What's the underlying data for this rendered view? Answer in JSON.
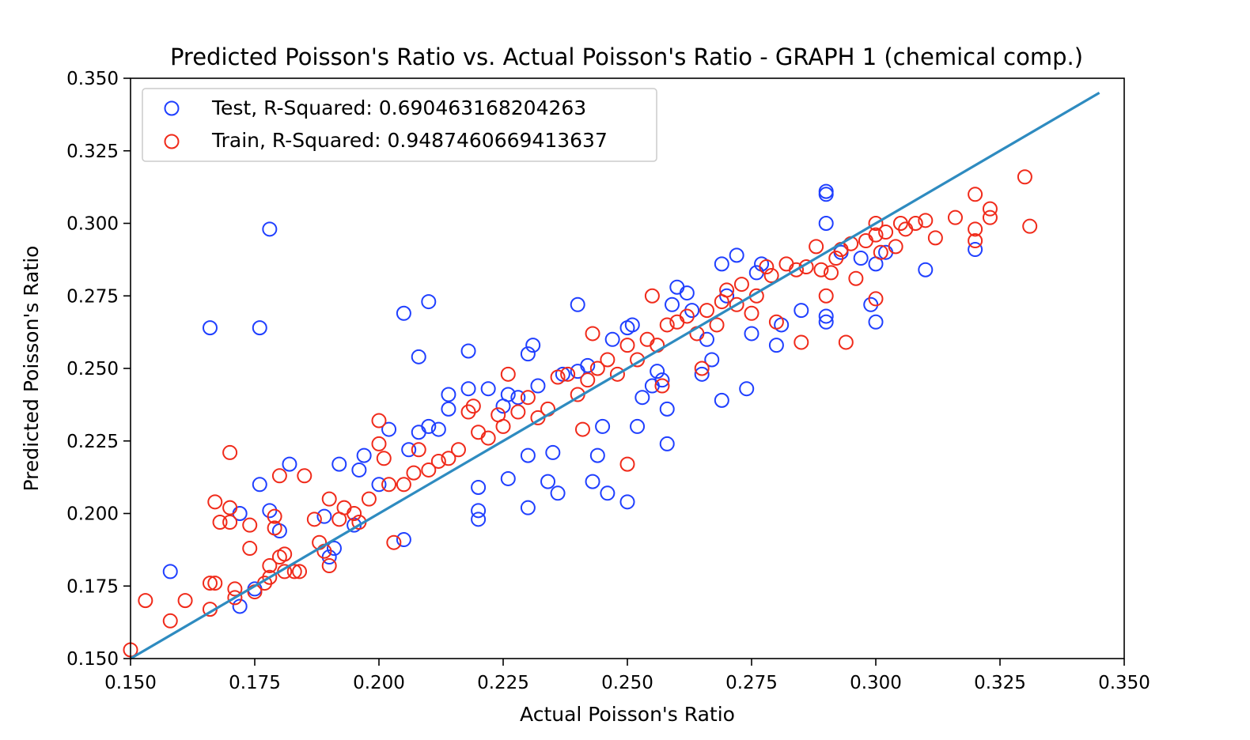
{
  "chart_data": {
    "type": "scatter",
    "title": "Predicted Poisson's Ratio vs. Actual Poisson's Ratio - GRAPH 1 (chemical comp.)",
    "xlabel": "Actual Poisson's Ratio",
    "ylabel": "Predicted Poisson's Ratio",
    "xlim": [
      0.15,
      0.35
    ],
    "ylim": [
      0.15,
      0.35
    ],
    "xticks": [
      "0.150",
      "0.175",
      "0.200",
      "0.225",
      "0.250",
      "0.275",
      "0.300",
      "0.325",
      "0.350"
    ],
    "yticks": [
      "0.150",
      "0.175",
      "0.200",
      "0.225",
      "0.250",
      "0.275",
      "0.300",
      "0.325",
      "0.350"
    ],
    "legend_position": "upper-left",
    "grid": false,
    "reference_line": {
      "x": [
        0.15,
        0.345
      ],
      "y": [
        0.15,
        0.345
      ],
      "color": "#2e8bc0"
    },
    "series": [
      {
        "name": "Test, R-Squared: 0.690463168204263",
        "color": "#1f3fff",
        "marker": "open-circle",
        "points": [
          [
            0.158,
            0.18
          ],
          [
            0.166,
            0.264
          ],
          [
            0.172,
            0.2
          ],
          [
            0.172,
            0.168
          ],
          [
            0.175,
            0.174
          ],
          [
            0.176,
            0.21
          ],
          [
            0.176,
            0.264
          ],
          [
            0.178,
            0.298
          ],
          [
            0.178,
            0.201
          ],
          [
            0.18,
            0.194
          ],
          [
            0.182,
            0.217
          ],
          [
            0.189,
            0.199
          ],
          [
            0.19,
            0.185
          ],
          [
            0.191,
            0.188
          ],
          [
            0.192,
            0.217
          ],
          [
            0.195,
            0.196
          ],
          [
            0.196,
            0.215
          ],
          [
            0.197,
            0.22
          ],
          [
            0.2,
            0.21
          ],
          [
            0.202,
            0.229
          ],
          [
            0.205,
            0.191
          ],
          [
            0.205,
            0.269
          ],
          [
            0.206,
            0.222
          ],
          [
            0.208,
            0.228
          ],
          [
            0.208,
            0.254
          ],
          [
            0.21,
            0.273
          ],
          [
            0.21,
            0.23
          ],
          [
            0.212,
            0.229
          ],
          [
            0.214,
            0.236
          ],
          [
            0.214,
            0.241
          ],
          [
            0.218,
            0.256
          ],
          [
            0.218,
            0.243
          ],
          [
            0.22,
            0.201
          ],
          [
            0.22,
            0.198
          ],
          [
            0.22,
            0.209
          ],
          [
            0.222,
            0.243
          ],
          [
            0.225,
            0.237
          ],
          [
            0.226,
            0.212
          ],
          [
            0.226,
            0.241
          ],
          [
            0.228,
            0.24
          ],
          [
            0.23,
            0.202
          ],
          [
            0.23,
            0.22
          ],
          [
            0.23,
            0.255
          ],
          [
            0.231,
            0.258
          ],
          [
            0.232,
            0.244
          ],
          [
            0.234,
            0.211
          ],
          [
            0.235,
            0.221
          ],
          [
            0.236,
            0.207
          ],
          [
            0.237,
            0.248
          ],
          [
            0.24,
            0.272
          ],
          [
            0.24,
            0.249
          ],
          [
            0.242,
            0.251
          ],
          [
            0.243,
            0.211
          ],
          [
            0.244,
            0.22
          ],
          [
            0.245,
            0.23
          ],
          [
            0.246,
            0.207
          ],
          [
            0.247,
            0.26
          ],
          [
            0.25,
            0.204
          ],
          [
            0.25,
            0.264
          ],
          [
            0.251,
            0.265
          ],
          [
            0.252,
            0.23
          ],
          [
            0.253,
            0.24
          ],
          [
            0.255,
            0.244
          ],
          [
            0.256,
            0.249
          ],
          [
            0.257,
            0.246
          ],
          [
            0.258,
            0.224
          ],
          [
            0.258,
            0.236
          ],
          [
            0.259,
            0.272
          ],
          [
            0.26,
            0.278
          ],
          [
            0.262,
            0.276
          ],
          [
            0.263,
            0.27
          ],
          [
            0.265,
            0.248
          ],
          [
            0.266,
            0.26
          ],
          [
            0.267,
            0.253
          ],
          [
            0.269,
            0.239
          ],
          [
            0.269,
            0.286
          ],
          [
            0.27,
            0.275
          ],
          [
            0.272,
            0.289
          ],
          [
            0.274,
            0.243
          ],
          [
            0.275,
            0.262
          ],
          [
            0.276,
            0.283
          ],
          [
            0.277,
            0.286
          ],
          [
            0.28,
            0.258
          ],
          [
            0.281,
            0.265
          ],
          [
            0.285,
            0.27
          ],
          [
            0.29,
            0.31
          ],
          [
            0.29,
            0.311
          ],
          [
            0.29,
            0.3
          ],
          [
            0.29,
            0.268
          ],
          [
            0.29,
            0.266
          ],
          [
            0.293,
            0.29
          ],
          [
            0.297,
            0.288
          ],
          [
            0.299,
            0.272
          ],
          [
            0.3,
            0.266
          ],
          [
            0.3,
            0.286
          ],
          [
            0.302,
            0.29
          ],
          [
            0.31,
            0.284
          ],
          [
            0.32,
            0.291
          ]
        ]
      },
      {
        "name": "Train, R-Squared: 0.9487460669413637",
        "color": "#f02a1a",
        "marker": "open-circle",
        "points": [
          [
            0.15,
            0.153
          ],
          [
            0.153,
            0.17
          ],
          [
            0.158,
            0.163
          ],
          [
            0.161,
            0.17
          ],
          [
            0.166,
            0.176
          ],
          [
            0.166,
            0.167
          ],
          [
            0.167,
            0.204
          ],
          [
            0.167,
            0.176
          ],
          [
            0.168,
            0.197
          ],
          [
            0.17,
            0.221
          ],
          [
            0.17,
            0.202
          ],
          [
            0.17,
            0.197
          ],
          [
            0.171,
            0.174
          ],
          [
            0.171,
            0.171
          ],
          [
            0.174,
            0.196
          ],
          [
            0.174,
            0.188
          ],
          [
            0.175,
            0.173
          ],
          [
            0.177,
            0.176
          ],
          [
            0.178,
            0.178
          ],
          [
            0.178,
            0.182
          ],
          [
            0.179,
            0.199
          ],
          [
            0.179,
            0.195
          ],
          [
            0.18,
            0.213
          ],
          [
            0.18,
            0.185
          ],
          [
            0.181,
            0.18
          ],
          [
            0.181,
            0.186
          ],
          [
            0.183,
            0.18
          ],
          [
            0.184,
            0.18
          ],
          [
            0.185,
            0.213
          ],
          [
            0.187,
            0.198
          ],
          [
            0.188,
            0.19
          ],
          [
            0.189,
            0.187
          ],
          [
            0.19,
            0.205
          ],
          [
            0.19,
            0.182
          ],
          [
            0.192,
            0.198
          ],
          [
            0.193,
            0.202
          ],
          [
            0.195,
            0.2
          ],
          [
            0.196,
            0.197
          ],
          [
            0.198,
            0.205
          ],
          [
            0.2,
            0.232
          ],
          [
            0.2,
            0.224
          ],
          [
            0.201,
            0.219
          ],
          [
            0.202,
            0.21
          ],
          [
            0.203,
            0.19
          ],
          [
            0.205,
            0.21
          ],
          [
            0.207,
            0.214
          ],
          [
            0.208,
            0.222
          ],
          [
            0.21,
            0.215
          ],
          [
            0.212,
            0.218
          ],
          [
            0.214,
            0.219
          ],
          [
            0.216,
            0.222
          ],
          [
            0.218,
            0.235
          ],
          [
            0.219,
            0.237
          ],
          [
            0.22,
            0.228
          ],
          [
            0.222,
            0.226
          ],
          [
            0.224,
            0.234
          ],
          [
            0.225,
            0.23
          ],
          [
            0.226,
            0.248
          ],
          [
            0.228,
            0.235
          ],
          [
            0.23,
            0.24
          ],
          [
            0.232,
            0.233
          ],
          [
            0.234,
            0.236
          ],
          [
            0.236,
            0.247
          ],
          [
            0.238,
            0.248
          ],
          [
            0.24,
            0.241
          ],
          [
            0.241,
            0.229
          ],
          [
            0.242,
            0.246
          ],
          [
            0.243,
            0.262
          ],
          [
            0.244,
            0.25
          ],
          [
            0.246,
            0.253
          ],
          [
            0.248,
            0.248
          ],
          [
            0.25,
            0.217
          ],
          [
            0.25,
            0.258
          ],
          [
            0.252,
            0.253
          ],
          [
            0.254,
            0.26
          ],
          [
            0.255,
            0.275
          ],
          [
            0.256,
            0.258
          ],
          [
            0.257,
            0.244
          ],
          [
            0.258,
            0.265
          ],
          [
            0.26,
            0.266
          ],
          [
            0.262,
            0.268
          ],
          [
            0.264,
            0.262
          ],
          [
            0.265,
            0.25
          ],
          [
            0.266,
            0.27
          ],
          [
            0.268,
            0.265
          ],
          [
            0.269,
            0.273
          ],
          [
            0.27,
            0.277
          ],
          [
            0.272,
            0.272
          ],
          [
            0.273,
            0.279
          ],
          [
            0.275,
            0.269
          ],
          [
            0.276,
            0.275
          ],
          [
            0.278,
            0.285
          ],
          [
            0.279,
            0.282
          ],
          [
            0.28,
            0.266
          ],
          [
            0.282,
            0.286
          ],
          [
            0.284,
            0.284
          ],
          [
            0.285,
            0.259
          ],
          [
            0.286,
            0.285
          ],
          [
            0.288,
            0.292
          ],
          [
            0.289,
            0.284
          ],
          [
            0.29,
            0.275
          ],
          [
            0.291,
            0.283
          ],
          [
            0.292,
            0.288
          ],
          [
            0.293,
            0.291
          ],
          [
            0.294,
            0.259
          ],
          [
            0.295,
            0.293
          ],
          [
            0.296,
            0.281
          ],
          [
            0.298,
            0.294
          ],
          [
            0.3,
            0.3
          ],
          [
            0.3,
            0.296
          ],
          [
            0.3,
            0.274
          ],
          [
            0.301,
            0.29
          ],
          [
            0.302,
            0.297
          ],
          [
            0.304,
            0.292
          ],
          [
            0.305,
            0.3
          ],
          [
            0.306,
            0.298
          ],
          [
            0.308,
            0.3
          ],
          [
            0.31,
            0.301
          ],
          [
            0.312,
            0.295
          ],
          [
            0.316,
            0.302
          ],
          [
            0.32,
            0.31
          ],
          [
            0.32,
            0.298
          ],
          [
            0.32,
            0.294
          ],
          [
            0.323,
            0.302
          ],
          [
            0.323,
            0.305
          ],
          [
            0.33,
            0.316
          ],
          [
            0.331,
            0.299
          ]
        ]
      }
    ]
  }
}
